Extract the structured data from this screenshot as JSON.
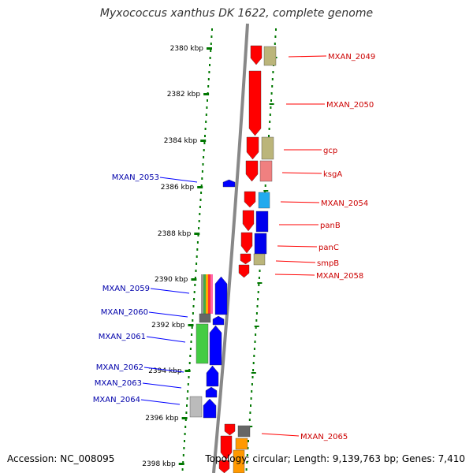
{
  "title": "Myxococcus xanthus DK 1622, complete genome",
  "footer": {
    "accession": "Accession: NC_008095",
    "topology": "Topology: circular; Length: 9,139,763 bp; Genes: 7,410"
  },
  "colors": {
    "forward_gene": "#ff0000",
    "reverse_gene": "#0000ff",
    "forward_label": "#cc0000",
    "reverse_label": "#0000aa",
    "scale_ticks": "#007700",
    "axis": "#888888"
  },
  "ruler": {
    "ticks": [
      "2380 kbp",
      "2382 kbp",
      "2384 kbp",
      "2386 kbp",
      "2388 kbp",
      "2390 kbp",
      "2392 kbp",
      "2394 kbp",
      "2396 kbp",
      "2398 kbp"
    ]
  },
  "labels": {
    "forward": [
      "MXAN_2049",
      "MXAN_2050",
      "gcp",
      "ksgA",
      "MXAN_2054",
      "panB",
      "panC",
      "smpB",
      "MXAN_2058",
      "MXAN_2065"
    ],
    "reverse": [
      "MXAN_2053",
      "MXAN_2059",
      "MXAN_2060",
      "MXAN_2061",
      "MXAN_2062",
      "MXAN_2063",
      "MXAN_2064"
    ]
  }
}
